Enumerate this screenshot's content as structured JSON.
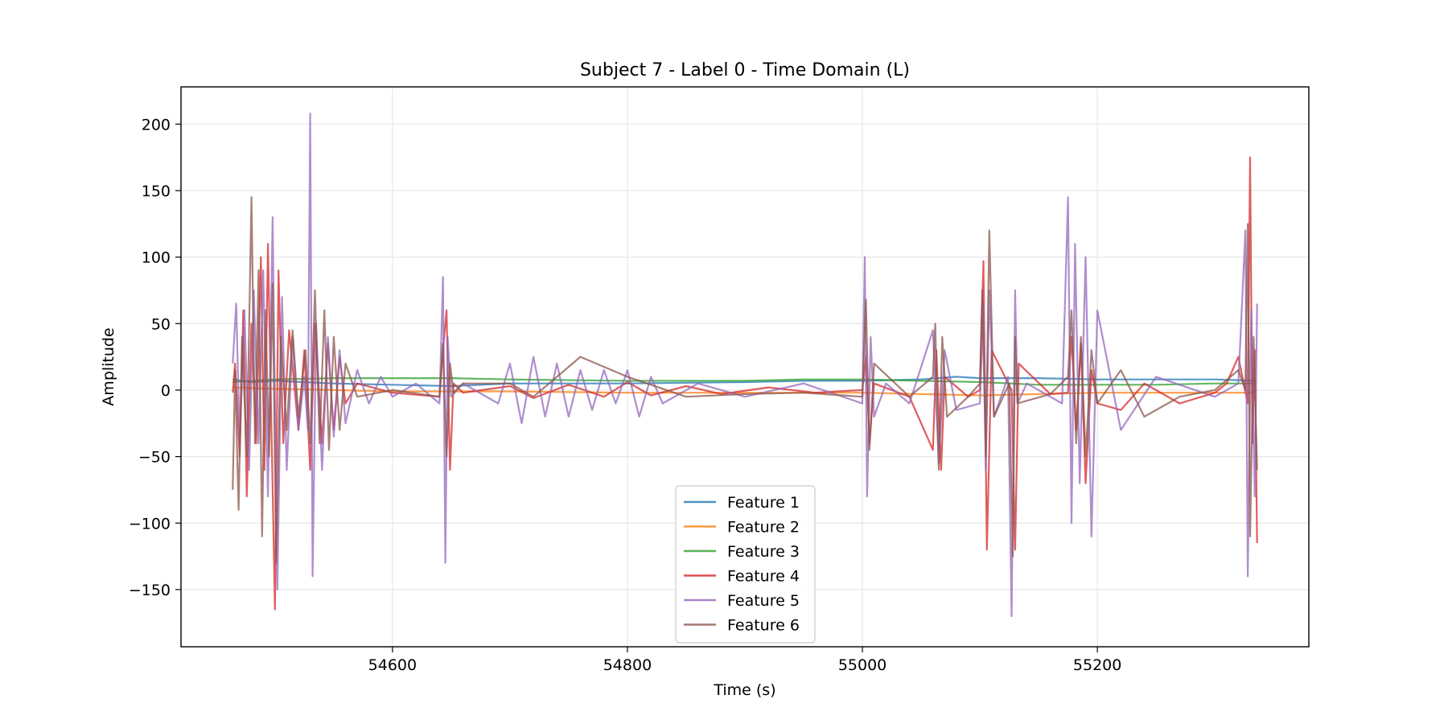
{
  "chart_data": {
    "type": "line",
    "title": "Subject 7 - Label 0 - Time Domain (L)",
    "xlabel": "Time (s)",
    "ylabel": "Amplitude",
    "xlim": [
      54420,
      55380
    ],
    "ylim": [
      -193,
      228
    ],
    "xticks": [
      54600,
      54800,
      55000,
      55200
    ],
    "xtick_labels": [
      "54600",
      "54800",
      "55000",
      "55200"
    ],
    "yticks": [
      -150,
      -100,
      -50,
      0,
      50,
      100,
      150,
      200
    ],
    "ytick_labels": [
      "−150",
      "−100",
      "−50",
      "0",
      "50",
      "100",
      "150",
      "200"
    ],
    "grid": true,
    "legend_position": "lower center",
    "colors": [
      "#1f77b4",
      "#ff7f0e",
      "#2ca02c",
      "#d62728",
      "#9467bd",
      "#8c564b"
    ],
    "series": [
      {
        "name": "Feature 1",
        "color": "#1f77b4",
        "x": [
          54464,
          54480,
          54500,
          54550,
          54600,
          54650,
          54700,
          54800,
          54900,
          54950,
          55000,
          55050,
          55080,
          55100,
          55150,
          55200,
          55250,
          55300,
          55335
        ],
        "y": [
          8,
          6,
          7,
          5,
          4,
          3,
          5,
          5,
          6,
          7,
          7,
          8,
          10,
          9,
          9,
          8,
          8,
          8,
          7
        ]
      },
      {
        "name": "Feature 2",
        "color": "#ff7f0e",
        "x": [
          54464,
          54500,
          54550,
          54600,
          54650,
          54700,
          54800,
          54900,
          55000,
          55050,
          55100,
          55150,
          55200,
          55250,
          55300,
          55335
        ],
        "y": [
          2,
          1,
          0,
          -1,
          -1,
          -1,
          -2,
          -2,
          -2,
          -3,
          -4,
          -3,
          -2,
          -2,
          -2,
          -2
        ]
      },
      {
        "name": "Feature 3",
        "color": "#2ca02c",
        "x": [
          54464,
          54500,
          54550,
          54600,
          54650,
          54700,
          54800,
          54900,
          54950,
          55000,
          55050,
          55100,
          55150,
          55200,
          55250,
          55300,
          55335
        ],
        "y": [
          6,
          8,
          9,
          9,
          9,
          8,
          7,
          7,
          8,
          8,
          7,
          6,
          4,
          4,
          4,
          5,
          5
        ]
      },
      {
        "name": "Feature 4",
        "color": "#d62728",
        "x": [
          54464,
          54466,
          54470,
          54473,
          54476,
          54480,
          54484,
          54488,
          54491,
          54494,
          54497,
          54500,
          54503,
          54507,
          54512,
          54520,
          54525,
          54530,
          54534,
          54540,
          54545,
          54550,
          54555,
          54560,
          54570,
          54600,
          54640,
          54643,
          54646,
          54649,
          54652,
          54660,
          54700,
          54720,
          54750,
          54780,
          54800,
          54820,
          54850,
          54880,
          54920,
          54960,
          55000,
          55003,
          55006,
          55010,
          55040,
          55060,
          55063,
          55067,
          55070,
          55090,
          55100,
          55103,
          55106,
          55110,
          55127,
          55130,
          55133,
          55160,
          55175,
          55178,
          55182,
          55186,
          55190,
          55195,
          55200,
          55220,
          55240,
          55270,
          55300,
          55310,
          55320,
          55328,
          55330,
          55332,
          55334,
          55336
        ],
        "y": [
          -2,
          20,
          -50,
          60,
          -80,
          50,
          -40,
          100,
          -60,
          110,
          -30,
          -165,
          90,
          -40,
          45,
          -30,
          30,
          -60,
          50,
          -40,
          35,
          -30,
          25,
          -10,
          5,
          -2,
          -5,
          30,
          60,
          -60,
          5,
          -2,
          3,
          -6,
          4,
          -5,
          6,
          -4,
          3,
          -3,
          2,
          -2,
          0,
          25,
          -40,
          5,
          -5,
          -45,
          30,
          -60,
          10,
          -5,
          0,
          97,
          -120,
          30,
          0,
          -120,
          20,
          -3,
          -2,
          40,
          -30,
          35,
          -70,
          15,
          -10,
          -15,
          5,
          -10,
          -2,
          5,
          25,
          -10,
          175,
          -40,
          30,
          -115
        ]
      },
      {
        "name": "Feature 5",
        "color": "#9467bd",
        "x": [
          54464,
          54467,
          54470,
          54474,
          54478,
          54482,
          54486,
          54490,
          54494,
          54498,
          54502,
          54506,
          54510,
          54515,
          54520,
          54525,
          54528,
          54530,
          54532,
          54535,
          54540,
          54545,
          54550,
          54555,
          54560,
          54570,
          54580,
          54590,
          54600,
          54620,
          54640,
          54643,
          54645,
          54647,
          54650,
          54660,
          54690,
          54700,
          54710,
          54720,
          54730,
          54740,
          54750,
          54760,
          54770,
          54780,
          54790,
          54800,
          54810,
          54820,
          54830,
          54860,
          54900,
          54950,
          55000,
          55002,
          55004,
          55007,
          55010,
          55020,
          55040,
          55060,
          55065,
          55070,
          55080,
          55100,
          55103,
          55105,
          55108,
          55112,
          55124,
          55127,
          55130,
          55132,
          55140,
          55170,
          55175,
          55178,
          55181,
          55185,
          55190,
          55195,
          55200,
          55220,
          55250,
          55300,
          55320,
          55326,
          55328,
          55331,
          55334,
          55336
        ],
        "y": [
          20,
          65,
          -40,
          60,
          -60,
          75,
          -40,
          90,
          -80,
          130,
          -150,
          70,
          -60,
          40,
          -30,
          10,
          -30,
          208,
          -140,
          50,
          -60,
          40,
          -35,
          30,
          -25,
          15,
          -10,
          10,
          -5,
          5,
          -10,
          85,
          -130,
          40,
          -5,
          5,
          -10,
          20,
          -25,
          25,
          -20,
          20,
          -20,
          15,
          -15,
          15,
          -10,
          15,
          -20,
          10,
          -10,
          5,
          -5,
          5,
          -10,
          100,
          -80,
          40,
          -20,
          5,
          -10,
          45,
          -55,
          30,
          -15,
          -10,
          65,
          -60,
          75,
          -20,
          10,
          -170,
          75,
          -10,
          5,
          -10,
          145,
          -100,
          110,
          -70,
          100,
          -110,
          60,
          -30,
          10,
          -5,
          5,
          120,
          -140,
          60,
          -80,
          65
        ]
      },
      {
        "name": "Feature 6",
        "color": "#8c564b",
        "x": [
          54464,
          54466,
          54469,
          54472,
          54476,
          54480,
          54483,
          54486,
          54489,
          54492,
          54495,
          54498,
          54501,
          54505,
          54510,
          54515,
          54520,
          54526,
          54530,
          54534,
          54538,
          54542,
          54546,
          54550,
          54555,
          54560,
          54570,
          54600,
          54640,
          54643,
          54646,
          54649,
          54652,
          54660,
          54700,
          54720,
          54760,
          54800,
          54850,
          54900,
          54950,
          55000,
          55003,
          55006,
          55010,
          55040,
          55060,
          55062,
          55065,
          55068,
          55072,
          55090,
          55100,
          55102,
          55105,
          55108,
          55112,
          55125,
          55128,
          55130,
          55132,
          55160,
          55175,
          55178,
          55182,
          55186,
          55190,
          55195,
          55200,
          55220,
          55240,
          55270,
          55300,
          55320,
          55326,
          55328,
          55330,
          55333,
          55336
        ],
        "y": [
          -75,
          15,
          -90,
          40,
          -50,
          145,
          -40,
          90,
          -110,
          60,
          -50,
          80,
          -130,
          40,
          -30,
          45,
          -20,
          30,
          -40,
          75,
          -40,
          60,
          -45,
          40,
          -30,
          20,
          -5,
          0,
          -5,
          35,
          -50,
          20,
          -2,
          5,
          5,
          -5,
          25,
          10,
          -5,
          -3,
          -2,
          -5,
          68,
          -45,
          20,
          -5,
          10,
          50,
          -60,
          40,
          -20,
          -5,
          5,
          75,
          -50,
          120,
          -20,
          5,
          -125,
          40,
          -10,
          -3,
          10,
          60,
          -40,
          40,
          -50,
          30,
          -10,
          15,
          -20,
          -5,
          0,
          15,
          0,
          125,
          -110,
          40,
          -60
        ]
      }
    ]
  }
}
